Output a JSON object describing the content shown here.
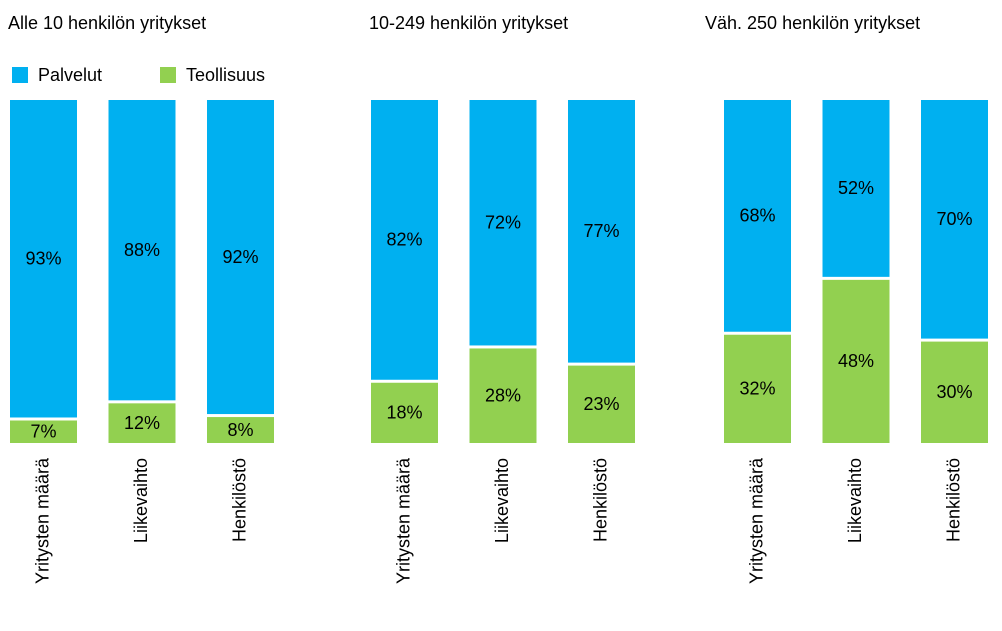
{
  "chart_data": [
    {
      "type": "stacked-bar",
      "title": "Alle 10 henkilön yritykset",
      "categories": [
        "Yritysten määrä",
        "Liikevaihto",
        "Henkilöstö"
      ],
      "series": [
        {
          "name": "Teollisuus",
          "color": "#92d050",
          "values": [
            7,
            12,
            8
          ],
          "value_labels": [
            "7%",
            "12%",
            "8%"
          ]
        },
        {
          "name": "Palvelut",
          "color": "#00b0f0",
          "values": [
            93,
            88,
            92
          ],
          "value_labels": [
            "93%",
            "88%",
            "92%"
          ]
        }
      ],
      "legend": "top-left"
    },
    {
      "type": "stacked-bar",
      "title": "10-249  henkilön yritykset",
      "categories": [
        "Yritysten määrä",
        "Liikevaihto",
        "Henkilöstö"
      ],
      "series": [
        {
          "color": "#92d050",
          "values": [
            18,
            28,
            23
          ],
          "value_labels": [
            "18%",
            "28%",
            "23%"
          ]
        },
        {
          "color": "#00b0f0",
          "values": [
            82,
            72,
            77
          ],
          "value_labels": [
            "82%",
            "72%",
            "77%"
          ]
        }
      ]
    },
    {
      "type": "stacked-bar",
      "title": "Väh. 250  henkilön yritykset",
      "categories": [
        "Yritysten määrä",
        "Liikevaihto",
        "Henkilöstö"
      ],
      "series": [
        {
          "color": "#92d050",
          "values": [
            32,
            48,
            30
          ],
          "value_labels": [
            "32%",
            "48%",
            "30%"
          ]
        },
        {
          "color": "#00b0f0",
          "values": [
            68,
            52,
            70
          ],
          "value_labels": [
            "68%",
            "52%",
            "70%"
          ]
        }
      ]
    }
  ]
}
